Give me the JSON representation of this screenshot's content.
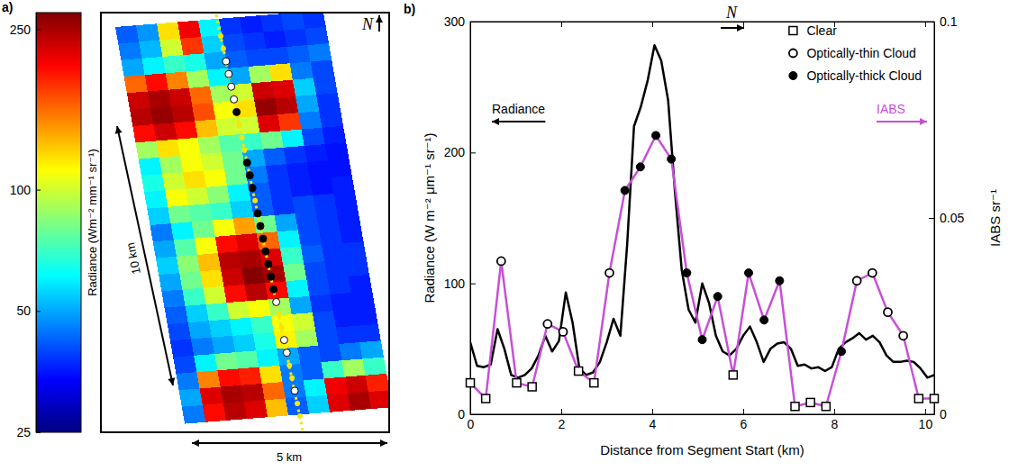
{
  "chart_data": [
    {
      "type": "heatmap",
      "panel_label": "a)",
      "north_label": "N",
      "scale_labels": [
        "10 km",
        "5 km"
      ],
      "color_label": "Radiance (Wm⁻² mm⁻¹ sr⁻¹)",
      "log": true,
      "color_range": [
        25,
        275
      ],
      "color_ticks": [
        25,
        50,
        100,
        250
      ],
      "cells": [
        [
          42,
          48,
          120,
          210,
          60,
          38,
          36,
          38,
          40,
          38
        ],
        [
          45,
          52,
          100,
          180,
          55,
          40,
          38,
          36,
          38,
          40
        ],
        [
          50,
          60,
          70,
          65,
          50,
          42,
          40,
          40,
          42,
          45
        ],
        [
          160,
          200,
          150,
          90,
          60,
          50,
          90,
          120,
          45,
          40
        ],
        [
          230,
          250,
          230,
          160,
          90,
          100,
          230,
          220,
          55,
          40
        ],
        [
          240,
          260,
          240,
          170,
          110,
          120,
          260,
          240,
          50,
          38
        ],
        [
          200,
          230,
          200,
          130,
          100,
          100,
          220,
          180,
          45,
          38
        ],
        [
          90,
          120,
          110,
          90,
          75,
          70,
          80,
          60,
          40,
          36
        ],
        [
          60,
          90,
          110,
          100,
          80,
          50,
          42,
          38,
          36,
          35
        ],
        [
          65,
          100,
          120,
          110,
          80,
          45,
          38,
          36,
          35,
          35
        ],
        [
          60,
          110,
          100,
          85,
          60,
          42,
          38,
          36,
          35,
          36
        ],
        [
          55,
          80,
          75,
          70,
          55,
          42,
          38,
          40,
          38,
          36
        ],
        [
          45,
          60,
          80,
          110,
          140,
          80,
          50,
          40,
          38,
          36
        ],
        [
          50,
          75,
          110,
          200,
          220,
          160,
          60,
          40,
          38,
          36
        ],
        [
          55,
          85,
          130,
          240,
          250,
          220,
          70,
          42,
          38,
          38
        ],
        [
          50,
          80,
          120,
          230,
          270,
          250,
          80,
          40,
          38,
          38
        ],
        [
          45,
          70,
          100,
          200,
          240,
          200,
          60,
          40,
          38,
          36
        ],
        [
          42,
          55,
          70,
          100,
          110,
          90,
          50,
          38,
          36,
          36
        ],
        [
          40,
          50,
          55,
          60,
          70,
          110,
          100,
          40,
          36,
          36
        ],
        [
          38,
          45,
          50,
          55,
          65,
          115,
          90,
          40,
          38,
          38
        ],
        [
          40,
          60,
          80,
          75,
          60,
          50,
          42,
          40,
          45,
          50
        ],
        [
          45,
          150,
          200,
          190,
          120,
          45,
          42,
          70,
          90,
          70
        ],
        [
          50,
          220,
          250,
          240,
          160,
          45,
          60,
          210,
          230,
          190
        ],
        [
          45,
          200,
          240,
          220,
          130,
          42,
          55,
          220,
          250,
          220
        ]
      ]
    },
    {
      "type": "line",
      "panel_label": "b)",
      "north_label": "N",
      "xlabel": "Distance from Segment Start (km)",
      "ylabel": "Radiance (W m⁻² μm⁻¹ sr⁻¹)",
      "y2label": "IABS sr⁻¹",
      "xlim": [
        0,
        10.2
      ],
      "xticks": [
        0,
        2,
        4,
        6,
        8,
        10
      ],
      "ylim": [
        0,
        300
      ],
      "yticks": [
        0,
        100,
        200,
        300
      ],
      "y2lim": [
        0,
        0.1
      ],
      "y2ticks": [
        0,
        0.05,
        0.1
      ],
      "grid": false,
      "legend": "upper-right",
      "series": [
        {
          "name": "Radiance",
          "type": "line",
          "color": "#000000",
          "x": [
            0,
            0.15,
            0.3,
            0.45,
            0.6,
            0.75,
            0.9,
            1.05,
            1.2,
            1.35,
            1.5,
            1.65,
            1.8,
            1.95,
            2.1,
            2.25,
            2.4,
            2.55,
            2.7,
            2.85,
            3,
            3.15,
            3.3,
            3.45,
            3.6,
            3.75,
            3.9,
            4.05,
            4.2,
            4.35,
            4.5,
            4.65,
            4.8,
            4.95,
            5.1,
            5.25,
            5.4,
            5.55,
            5.7,
            5.85,
            6,
            6.15,
            6.3,
            6.45,
            6.6,
            6.75,
            6.9,
            7.05,
            7.2,
            7.35,
            7.5,
            7.65,
            7.8,
            7.95,
            8.1,
            8.25,
            8.4,
            8.55,
            8.7,
            8.85,
            9,
            9.15,
            9.3,
            9.45,
            9.6,
            9.75,
            9.9,
            10.05,
            10.2
          ],
          "values": [
            55,
            37,
            36,
            38,
            65,
            50,
            30,
            28,
            30,
            35,
            45,
            60,
            48,
            56,
            93,
            70,
            35,
            30,
            32,
            40,
            55,
            73,
            60,
            130,
            220,
            235,
            255,
            282,
            270,
            240,
            170,
            110,
            80,
            70,
            100,
            85,
            60,
            48,
            45,
            50,
            60,
            67,
            55,
            40,
            50,
            54,
            55,
            50,
            37,
            38,
            35,
            36,
            33,
            36,
            50,
            55,
            58,
            62,
            57,
            60,
            55,
            45,
            40,
            40,
            41,
            40,
            35,
            28,
            30
          ]
        },
        {
          "name": "IABS",
          "type": "line",
          "color": "#c84fd8",
          "axis": "y2",
          "x": [
            0,
            0.34,
            0.68,
            1.02,
            1.36,
            1.7,
            2.04,
            2.38,
            2.72,
            3.06,
            3.4,
            3.74,
            4.08,
            4.42,
            4.76,
            5.1,
            5.44,
            5.78,
            6.12,
            6.46,
            6.8,
            7.14,
            7.48,
            7.82,
            8.16,
            8.5,
            8.84,
            9.18,
            9.52,
            9.86,
            10.2
          ],
          "values": [
            0.008,
            0.004,
            0.039,
            0.008,
            0.007,
            0.023,
            0.021,
            0.011,
            0.008,
            0.036,
            0.057,
            0.063,
            0.071,
            0.065,
            0.036,
            0.019,
            0.03,
            0.01,
            0.036,
            0.024,
            0.034,
            0.002,
            0.003,
            0.002,
            0.016,
            0.034,
            0.036,
            0.026,
            0.02,
            0.004,
            0.004
          ]
        },
        {
          "name": "Clear",
          "type": "scatter",
          "marker": "square-open",
          "axis": "y2",
          "x": [
            0,
            0.34,
            1.02,
            1.36,
            2.38,
            2.72,
            5.78,
            7.14,
            7.48,
            7.82,
            9.86,
            10.2
          ],
          "values": [
            0.008,
            0.004,
            0.008,
            0.007,
            0.011,
            0.008,
            0.01,
            0.002,
            0.003,
            0.002,
            0.004,
            0.004
          ]
        },
        {
          "name": "Optically-thin Cloud",
          "type": "scatter",
          "marker": "circle-open",
          "axis": "y2",
          "x": [
            0.68,
            1.7,
            2.04,
            3.06,
            8.5,
            8.84,
            9.18,
            9.52
          ],
          "values": [
            0.039,
            0.023,
            0.021,
            0.036,
            0.034,
            0.036,
            0.026,
            0.02
          ]
        },
        {
          "name": "Optically-thick Cloud",
          "type": "scatter",
          "marker": "circle-filled",
          "axis": "y2",
          "x": [
            3.4,
            3.74,
            4.08,
            4.42,
            4.76,
            5.1,
            5.44,
            6.12,
            6.46,
            6.8,
            8.16
          ],
          "values": [
            0.057,
            0.063,
            0.071,
            0.065,
            0.036,
            0.019,
            0.03,
            0.036,
            0.024,
            0.034,
            0.016
          ]
        }
      ]
    }
  ]
}
